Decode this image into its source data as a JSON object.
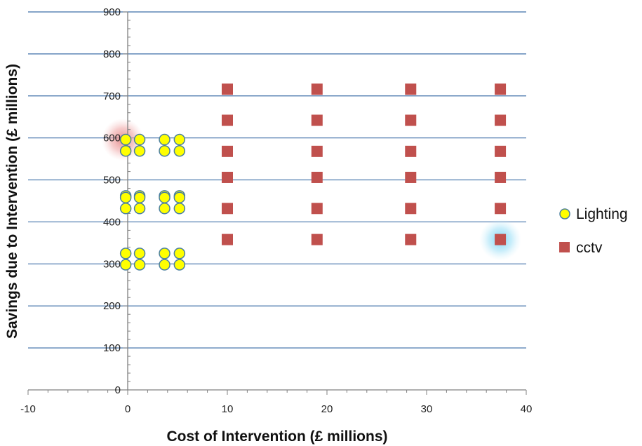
{
  "chart_data": {
    "type": "scatter",
    "xlabel": "Cost of Intervention (£ millions)",
    "ylabel": "Savings due to Intervention (£ millions)",
    "xlim": [
      -10,
      40
    ],
    "ylim": [
      0,
      900
    ],
    "xticks": [
      -10,
      0,
      10,
      20,
      30,
      40
    ],
    "yticks": [
      0,
      100,
      200,
      300,
      400,
      500,
      600,
      700,
      800,
      900
    ],
    "grid": "horizontal",
    "legend_position": "right",
    "series": [
      {
        "name": "Lighting",
        "marker": "circle",
        "color": "#ffff00",
        "edge_color": "#4a7fa0",
        "points": [
          [
            -0.2,
            596
          ],
          [
            1.2,
            596
          ],
          [
            3.7,
            596
          ],
          [
            5.2,
            596
          ],
          [
            -0.2,
            569
          ],
          [
            1.2,
            569
          ],
          [
            3.7,
            569
          ],
          [
            5.2,
            569
          ],
          [
            -0.2,
            462
          ],
          [
            1.2,
            462
          ],
          [
            3.7,
            462
          ],
          [
            5.2,
            462
          ],
          [
            -0.2,
            458
          ],
          [
            1.2,
            458
          ],
          [
            3.7,
            458
          ],
          [
            5.2,
            458
          ],
          [
            -0.2,
            432
          ],
          [
            1.2,
            432
          ],
          [
            3.7,
            432
          ],
          [
            5.2,
            432
          ],
          [
            -0.2,
            325
          ],
          [
            1.2,
            325
          ],
          [
            3.7,
            325
          ],
          [
            5.2,
            325
          ],
          [
            -0.2,
            298
          ],
          [
            1.2,
            298
          ],
          [
            3.7,
            298
          ],
          [
            5.2,
            298
          ]
        ]
      },
      {
        "name": "cctv",
        "marker": "square",
        "color": "#c0504d",
        "points": [
          [
            10,
            716
          ],
          [
            19,
            716
          ],
          [
            28.4,
            716
          ],
          [
            37.4,
            716
          ],
          [
            10,
            642
          ],
          [
            19,
            642
          ],
          [
            28.4,
            642
          ],
          [
            37.4,
            642
          ],
          [
            10,
            568
          ],
          [
            19,
            568
          ],
          [
            28.4,
            568
          ],
          [
            37.4,
            568
          ],
          [
            10,
            506
          ],
          [
            19,
            506
          ],
          [
            28.4,
            506
          ],
          [
            37.4,
            506
          ],
          [
            10,
            432
          ],
          [
            19,
            432
          ],
          [
            28.4,
            432
          ],
          [
            37.4,
            432
          ],
          [
            10,
            358
          ],
          [
            19,
            358
          ],
          [
            28.4,
            358
          ],
          [
            37.4,
            358
          ]
        ]
      }
    ],
    "highlights": [
      {
        "x": -0.5,
        "y": 596,
        "color": "#e8a0a0"
      },
      {
        "x": 37.4,
        "y": 358,
        "color": "#7fd6f2"
      }
    ]
  }
}
